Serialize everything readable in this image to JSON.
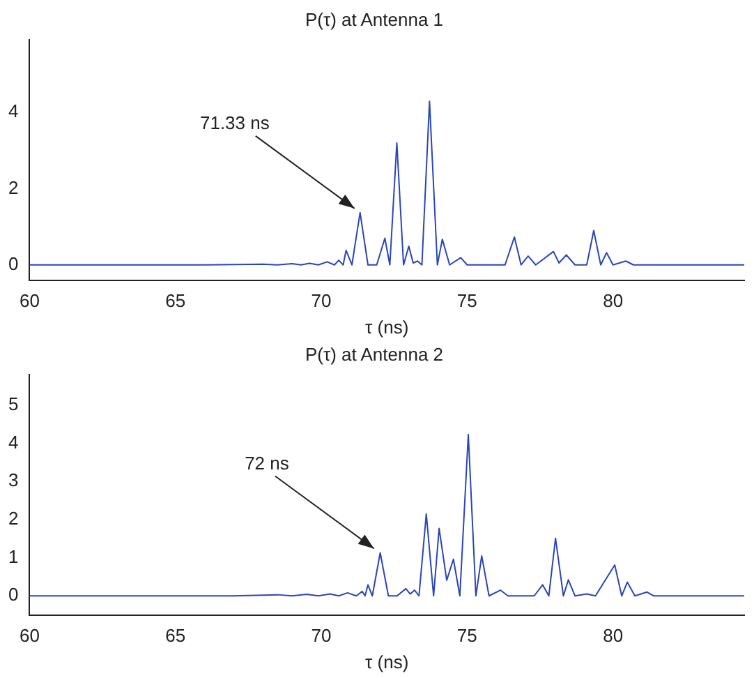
{
  "chart_data": [
    {
      "type": "line",
      "title": "P(τ) at Antenna 1",
      "xlabel": "τ (ns)",
      "xlim": [
        60,
        84.5
      ],
      "xticks": [
        60,
        65,
        70,
        75,
        80
      ],
      "ylim": [
        -0.4,
        5.9
      ],
      "yticks": [
        0,
        2,
        4
      ],
      "x": [
        60,
        66,
        68,
        68.5,
        69,
        69.3,
        69.6,
        69.9,
        70.2,
        70.45,
        70.6,
        70.75,
        70.85,
        71.05,
        71.33,
        71.6,
        71.9,
        72.18,
        72.35,
        72.59,
        72.82,
        73.0,
        73.15,
        73.3,
        73.45,
        73.71,
        73.98,
        74.15,
        74.4,
        74.78,
        75.0,
        76.3,
        76.62,
        76.85,
        77.09,
        77.35,
        77.96,
        78.15,
        78.4,
        78.7,
        79.1,
        79.34,
        79.58,
        79.78,
        80.0,
        80.44,
        80.7,
        84.5
      ],
      "series": [
        {
          "color": "#2a45b8",
          "values": [
            0,
            0,
            0.02,
            0,
            0.03,
            0,
            0.04,
            0,
            0.08,
            0,
            0.12,
            0,
            0.38,
            0,
            1.37,
            0,
            0,
            0.7,
            0,
            3.2,
            0,
            0.49,
            0.05,
            0.1,
            0,
            4.29,
            0,
            0.67,
            0,
            0.19,
            0,
            0,
            0.73,
            0,
            0.23,
            0,
            0.35,
            0.05,
            0.26,
            0,
            0,
            0.9,
            0,
            0.32,
            0,
            0.1,
            0,
            0
          ]
        }
      ],
      "annotations": [
        {
          "text": "71.33 ns",
          "x": 71.33,
          "y": 1.37
        }
      ]
    },
    {
      "type": "line",
      "title": "P(τ) at Antenna 2",
      "xlabel": "τ (ns)",
      "xlim": [
        60,
        84.5
      ],
      "xticks": [
        60,
        65,
        70,
        75,
        80
      ],
      "ylim": [
        -0.5,
        5.8
      ],
      "yticks": [
        0,
        1,
        2,
        3,
        4,
        5
      ],
      "x": [
        60,
        67,
        68.5,
        69,
        69.5,
        69.9,
        70.3,
        70.6,
        70.9,
        71.2,
        71.4,
        71.5,
        71.6,
        71.75,
        72.02,
        72.3,
        72.6,
        72.9,
        73.05,
        73.2,
        73.35,
        73.6,
        73.85,
        74.04,
        74.3,
        74.53,
        74.75,
        75.04,
        75.3,
        75.5,
        75.75,
        76.14,
        76.4,
        77.3,
        77.59,
        77.8,
        78.03,
        78.3,
        78.47,
        78.7,
        79.1,
        79.4,
        80.06,
        80.3,
        80.49,
        80.75,
        81.17,
        81.4,
        84.5
      ],
      "series": [
        {
          "color": "#2a45b8",
          "values": [
            0,
            0,
            0.03,
            0,
            0.04,
            0,
            0.05,
            0,
            0.08,
            0,
            0.12,
            0,
            0.29,
            0,
            1.13,
            0,
            0,
            0.19,
            0.05,
            0.15,
            0,
            2.15,
            0,
            1.77,
            0.41,
            0.96,
            0,
            4.23,
            0,
            1.05,
            0,
            0.15,
            0,
            0,
            0.29,
            0,
            1.51,
            0,
            0.42,
            0,
            0.05,
            0,
            0.81,
            0,
            0.36,
            0,
            0.1,
            0,
            0
          ]
        }
      ],
      "annotations": [
        {
          "text": "72 ns",
          "x": 72,
          "y": 1.13
        }
      ]
    }
  ]
}
